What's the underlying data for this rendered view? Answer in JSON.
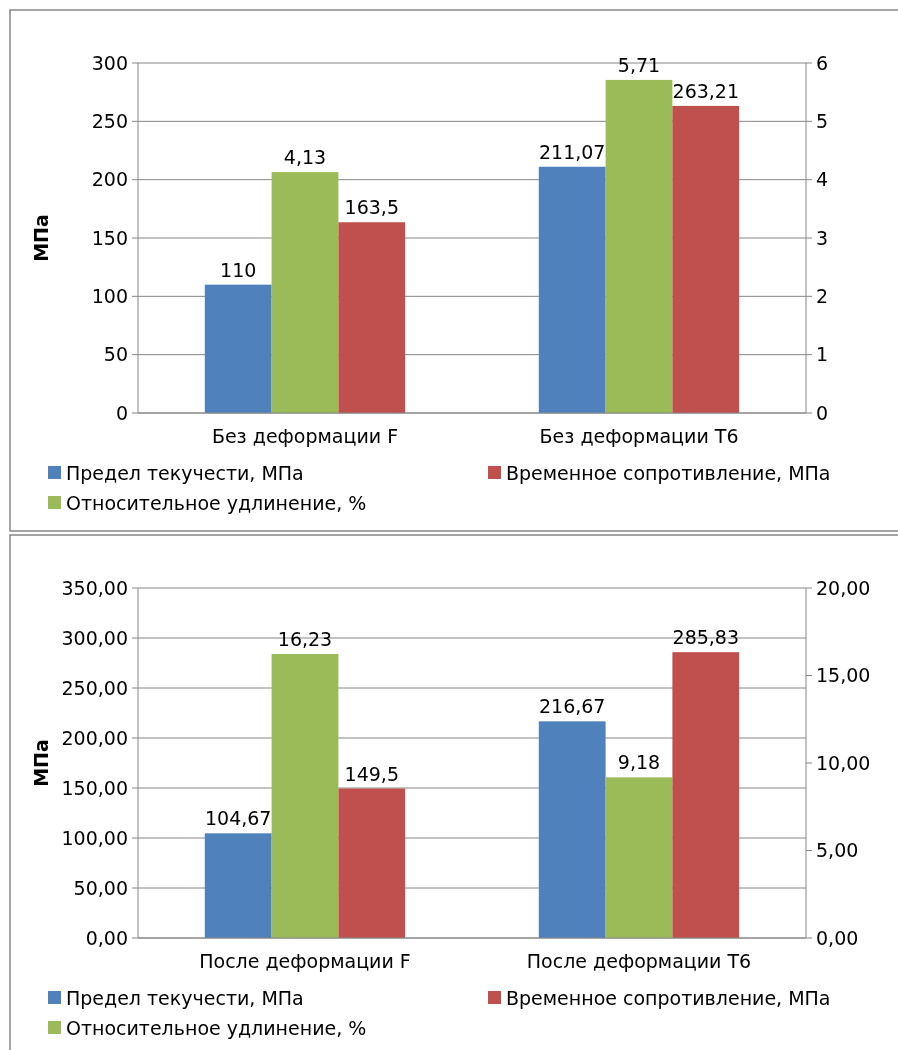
{
  "chart_data": [
    {
      "type": "bar",
      "categories": [
        "Без деформации F",
        "Без деформации T6"
      ],
      "ylabel": "МПа",
      "ylim": [
        0,
        300
      ],
      "yticks": [
        0,
        50,
        100,
        150,
        200,
        250,
        300
      ],
      "y2lim": [
        0,
        6
      ],
      "y2ticks": [
        0,
        1,
        2,
        3,
        4,
        5,
        6
      ],
      "grid": "y",
      "legend": "bottom",
      "series": [
        {
          "name": "Предел текучести, МПа",
          "color": "#4f81bd",
          "values": [
            110,
            211.07
          ],
          "value_labels": [
            "110",
            "211,07"
          ]
        },
        {
          "name": "Относительное удлинение, %",
          "color": "#9bbb59",
          "axis": "y2",
          "values": [
            4.13,
            5.71
          ],
          "value_labels": [
            "4,13",
            "5,71"
          ]
        },
        {
          "name": "Временное сопротивление, МПа",
          "color": "#c0504d",
          "values": [
            163.5,
            263.21
          ],
          "value_labels": [
            "163,5",
            "263,21"
          ]
        }
      ]
    },
    {
      "type": "bar",
      "categories": [
        "После деформации F",
        "После деформации T6"
      ],
      "ylabel": "МПа",
      "ylim": [
        0,
        350
      ],
      "yticks": [
        {
          "value": 0,
          "label": "0,00"
        },
        {
          "value": 50,
          "label": "50,00"
        },
        {
          "value": 100,
          "label": "100,00"
        },
        {
          "value": 150,
          "label": "150,00"
        },
        {
          "value": 200,
          "label": "200,00"
        },
        {
          "value": 250,
          "label": "250,00"
        },
        {
          "value": 300,
          "label": "300,00"
        },
        {
          "value": 350,
          "label": "350,00"
        }
      ],
      "y2lim": [
        0,
        20
      ],
      "y2ticks": [
        {
          "value": 0,
          "label": "0,00"
        },
        {
          "value": 5,
          "label": "5,00"
        },
        {
          "value": 10,
          "label": "10,00"
        },
        {
          "value": 15,
          "label": "15,00"
        },
        {
          "value": 20,
          "label": "20,00"
        }
      ],
      "grid": "y",
      "legend": "bottom",
      "series": [
        {
          "name": "Предел текучести, МПа",
          "color": "#4f81bd",
          "values": [
            104.67,
            216.67
          ],
          "value_labels": [
            "104,67",
            "216,67"
          ]
        },
        {
          "name": "Относительное удлинение, %",
          "color": "#9bbb59",
          "axis": "y2",
          "values": [
            16.23,
            9.18
          ],
          "value_labels": [
            "16,23",
            "9,18"
          ]
        },
        {
          "name": "Временное сопротивление, МПа",
          "color": "#c0504d",
          "values": [
            149.5,
            285.83
          ],
          "value_labels": [
            "149,5",
            "285,83"
          ]
        }
      ]
    }
  ]
}
